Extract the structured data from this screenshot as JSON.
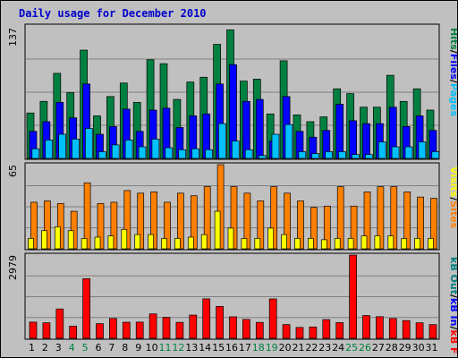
{
  "title": "Daily usage for December 2010",
  "colors": {
    "hits": "#008040",
    "files": "#0000ff",
    "pages": "#00c0ff",
    "visits": "#ffff00",
    "sites": "#ff8000",
    "kb_in": "#0000ff",
    "kb_out": "#008080",
    "kb_f": "#ff0000",
    "label_white": "#000000",
    "label_weekend": "#008040"
  },
  "chart_data": [
    {
      "type": "bar",
      "max_label": "137",
      "ylim": [
        0,
        137
      ],
      "legend": {
        "pages": "Pages",
        "sep1": "/",
        "files": "Files",
        "sep2": "/",
        "hits": "Hits"
      },
      "categories": [
        "1",
        "2",
        "3",
        "4",
        "5",
        "6",
        "7",
        "8",
        "9",
        "10",
        "11",
        "12",
        "13",
        "14",
        "15",
        "16",
        "17",
        "18",
        "19",
        "20",
        "21",
        "22",
        "23",
        "24",
        "25",
        "26",
        "27",
        "28",
        "29",
        "30",
        "31"
      ],
      "series": [
        {
          "name": "Hits",
          "values": [
            47,
            59,
            88,
            68,
            112,
            44,
            64,
            78,
            58,
            102,
            98,
            61,
            79,
            84,
            118,
            133,
            80,
            82,
            46,
            101,
            45,
            38,
            43,
            72,
            67,
            53,
            53,
            86,
            59,
            72,
            50
          ]
        },
        {
          "name": "Files",
          "values": [
            28,
            38,
            58,
            42,
            77,
            25,
            33,
            51,
            28,
            50,
            52,
            32,
            44,
            46,
            77,
            97,
            59,
            61,
            18,
            64,
            28,
            22,
            29,
            56,
            39,
            36,
            36,
            53,
            33,
            44,
            29
          ]
        },
        {
          "name": "Pages",
          "values": [
            10,
            19,
            25,
            20,
            31,
            7,
            14,
            19,
            12,
            20,
            11,
            9,
            10,
            9,
            36,
            18,
            9,
            3,
            25,
            35,
            7,
            5,
            7,
            7,
            4,
            4,
            17,
            12,
            12,
            17,
            7
          ]
        }
      ]
    },
    {
      "type": "bar",
      "max_label": "65",
      "ylim": [
        0,
        65
      ],
      "legend": {
        "visits": "Visits",
        "sep": "/",
        "sites": "Sites"
      },
      "categories": [
        "1",
        "2",
        "3",
        "4",
        "5",
        "6",
        "7",
        "8",
        "9",
        "10",
        "11",
        "12",
        "13",
        "14",
        "15",
        "16",
        "17",
        "18",
        "19",
        "20",
        "21",
        "22",
        "23",
        "24",
        "25",
        "26",
        "27",
        "28",
        "29",
        "30",
        "31"
      ],
      "series": [
        {
          "name": "Sites",
          "values": [
            36,
            37,
            35,
            29,
            51,
            35,
            36,
            45,
            43,
            44,
            36,
            43,
            41,
            48,
            65,
            48,
            43,
            37,
            48,
            43,
            37,
            32,
            33,
            48,
            33,
            44,
            48,
            48,
            44,
            40,
            39
          ]
        },
        {
          "name": "Visits",
          "values": [
            8,
            14,
            17,
            14,
            8,
            9,
            10,
            15,
            11,
            11,
            8,
            8,
            9,
            11,
            29,
            16,
            8,
            8,
            16,
            11,
            8,
            8,
            7,
            8,
            8,
            10,
            10,
            10,
            8,
            8,
            8
          ]
        }
      ]
    },
    {
      "type": "bar",
      "max_label": "2979",
      "ylim": [
        0,
        2979
      ],
      "legend": {
        "kb_f": "kB F",
        "sep1": "/",
        "kb_in": "kB In",
        "sep2": "/",
        "kb_out": "kB Out"
      },
      "categories": [
        "1",
        "2",
        "3",
        "4",
        "5",
        "6",
        "7",
        "8",
        "9",
        "10",
        "11",
        "12",
        "13",
        "14",
        "15",
        "16",
        "17",
        "18",
        "19",
        "20",
        "21",
        "22",
        "23",
        "24",
        "25",
        "26",
        "27",
        "28",
        "29",
        "30",
        "31"
      ],
      "series": [
        {
          "name": "kB F",
          "values": [
            580,
            556,
            1051,
            436,
            2134,
            526,
            710,
            576,
            580,
            874,
            749,
            571,
            832,
            1413,
            1140,
            770,
            676,
            570,
            1410,
            492,
            389,
            407,
            670,
            562,
            2979,
            816,
            774,
            708,
            635,
            556,
            491
          ]
        }
      ]
    }
  ],
  "x_axis": {
    "labels": [
      "1",
      "2",
      "3",
      "4",
      "5",
      "6",
      "7",
      "8",
      "9",
      "10",
      "11",
      "12",
      "13",
      "14",
      "15",
      "16",
      "17",
      "18",
      "19",
      "20",
      "21",
      "22",
      "23",
      "24",
      "25",
      "26",
      "27",
      "28",
      "29",
      "30",
      "31"
    ],
    "weekend": [
      4,
      5,
      11,
      12,
      18,
      19,
      25,
      26
    ]
  }
}
